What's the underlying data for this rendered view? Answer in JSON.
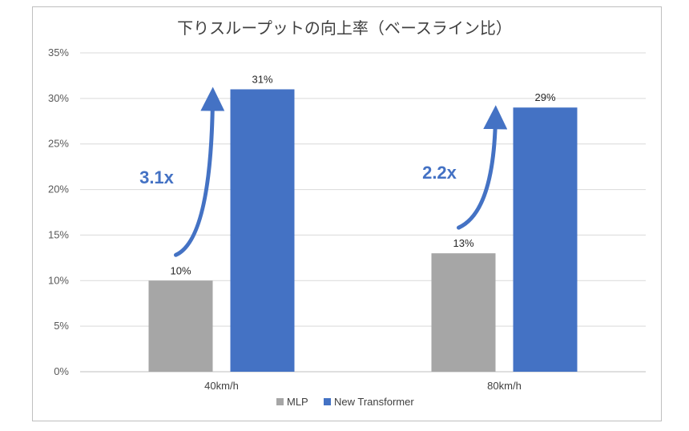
{
  "chart_data": {
    "type": "bar",
    "title": "下りスループットの向上率（ベースライン比）",
    "categories": [
      "40km/h",
      "80km/h"
    ],
    "series": [
      {
        "name": "MLP",
        "values": [
          10,
          13
        ],
        "labels": [
          "10%",
          "13%"
        ],
        "color": "#a6a6a6"
      },
      {
        "name": "New Transformer",
        "values": [
          31,
          29
        ],
        "labels": [
          "31%",
          "29%"
        ],
        "color": "#4472c4"
      }
    ],
    "ylim": [
      0,
      35
    ],
    "yticks": [
      0,
      5,
      10,
      15,
      20,
      25,
      30,
      35
    ],
    "ytick_labels": [
      "0%",
      "5%",
      "10%",
      "15%",
      "20%",
      "25%",
      "30%",
      "35%"
    ],
    "grid": true,
    "legend": "bottom",
    "annotations": [
      {
        "text": "3.1x",
        "category": "40km/h"
      },
      {
        "text": "2.2x",
        "category": "80km/h"
      }
    ],
    "annotation_color": "#4472c4"
  }
}
